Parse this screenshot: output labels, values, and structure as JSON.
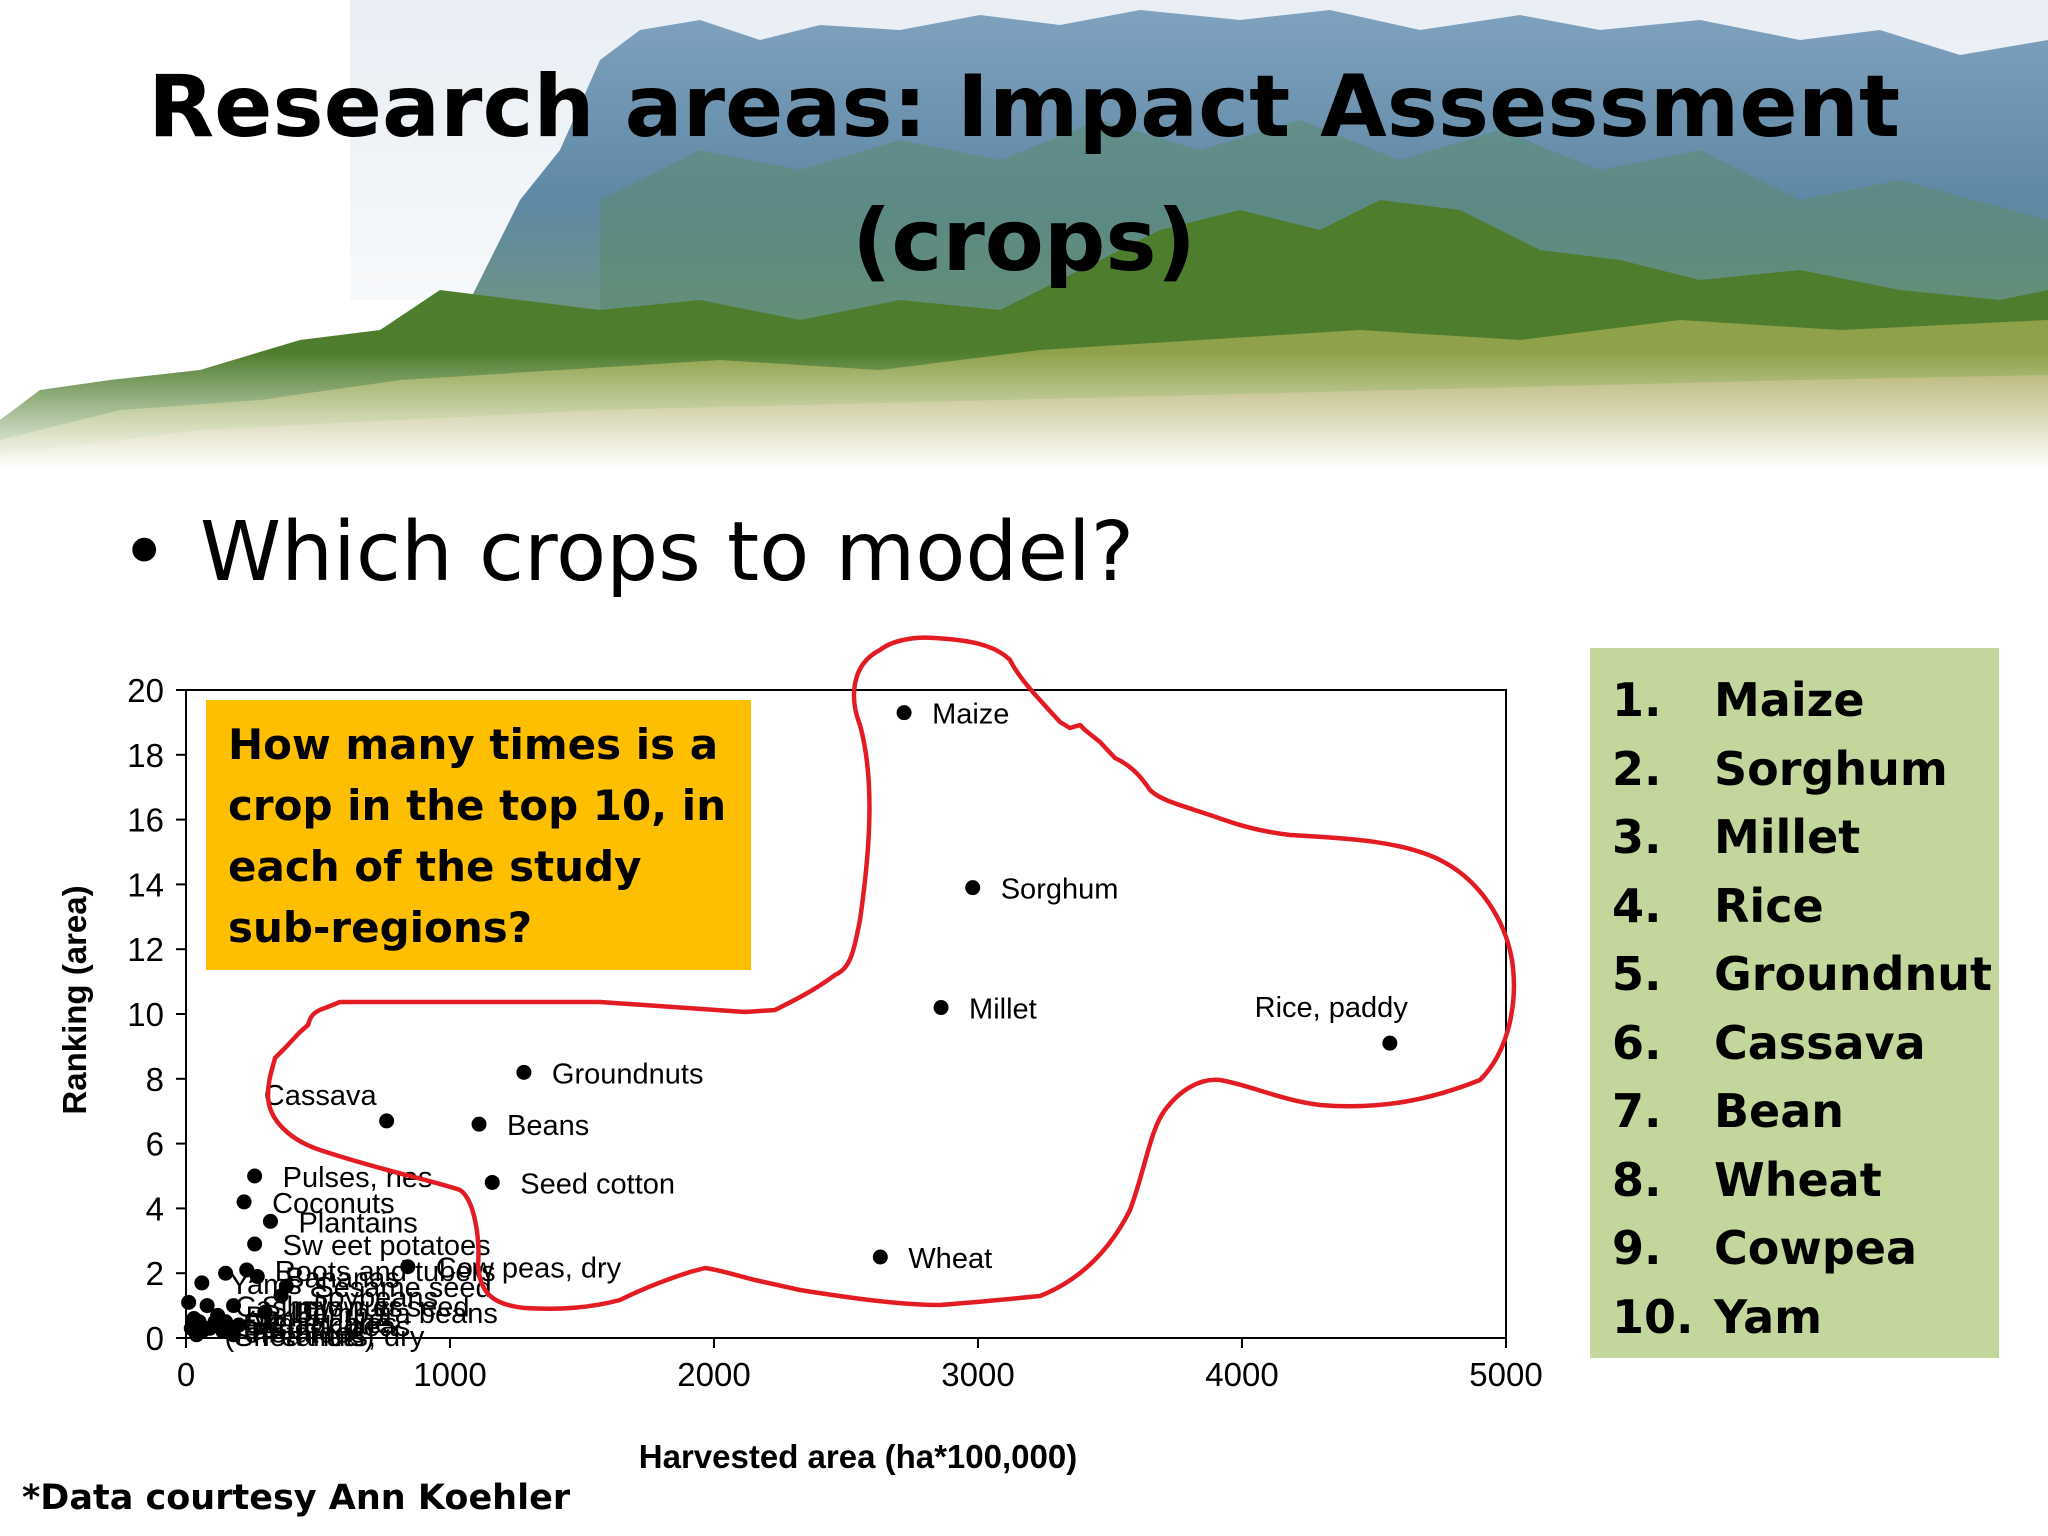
{
  "slide": {
    "title_line1": "Research areas: Impact Assessment",
    "title_line2": "(crops)",
    "bullet": "Which crops to model?",
    "callout": "How many times is a crop in the top 10, in each of the study sub-regions?",
    "credit": "*Data courtesy Ann Koehler",
    "ranking": [
      {
        "num": "1.",
        "name": "Maize"
      },
      {
        "num": "2.",
        "name": "Sorghum"
      },
      {
        "num": "3.",
        "name": "Millet"
      },
      {
        "num": "4.",
        "name": "Rice"
      },
      {
        "num": "5.",
        "name": "Groundnut"
      },
      {
        "num": "6.",
        "name": "Cassava"
      },
      {
        "num": "7.",
        "name": "Bean"
      },
      {
        "num": "8.",
        "name": "Wheat"
      },
      {
        "num": "9.",
        "name": "Cowpea"
      },
      {
        "num": "10.",
        "name": "Yam"
      }
    ],
    "colors": {
      "callout_bg": "#fdbf00",
      "ranking_bg": "#c3d69b",
      "highlight_outline": "#e31b23",
      "point": "#000000"
    }
  },
  "chart_data": {
    "type": "scatter",
    "xlabel": "Harvested area (ha*100,000)",
    "ylabel": "Ranking (area)",
    "xlim": [
      0,
      5000
    ],
    "ylim": [
      0,
      20
    ],
    "xticks": [
      0,
      1000,
      2000,
      3000,
      4000,
      5000
    ],
    "yticks": [
      0,
      2,
      4,
      6,
      8,
      10,
      12,
      14,
      16,
      18,
      20
    ],
    "grid": false,
    "points": [
      {
        "label": "Maize",
        "x": 2720,
        "y": 19.3
      },
      {
        "label": "Sorghum",
        "x": 2980,
        "y": 13.9
      },
      {
        "label": "Millet",
        "x": 2860,
        "y": 10.2
      },
      {
        "label": "Rice, paddy",
        "x": 4560,
        "y": 9.1
      },
      {
        "label": "Groundnuts",
        "x": 1280,
        "y": 8.2
      },
      {
        "label": "Cassava",
        "x": 760,
        "y": 6.7
      },
      {
        "label": "Beans",
        "x": 1110,
        "y": 6.6
      },
      {
        "label": "Seed cotton",
        "x": 1160,
        "y": 4.8
      },
      {
        "label": "Wheat",
        "x": 2630,
        "y": 2.5
      },
      {
        "label": "Pulses, nes",
        "x": 260,
        "y": 5.0
      },
      {
        "label": "Coconuts",
        "x": 220,
        "y": 4.2
      },
      {
        "label": "Plantains",
        "x": 320,
        "y": 3.6
      },
      {
        "label": "Sw eet potatoes",
        "x": 260,
        "y": 2.9
      },
      {
        "label": "Roots and tubers",
        "x": 230,
        "y": 2.1
      },
      {
        "label": "Cow peas, dry",
        "x": 840,
        "y": 2.2
      },
      {
        "label": "Bananas",
        "x": 270,
        "y": 1.9
      },
      {
        "label": "Sesame seed",
        "x": 380,
        "y": 1.6
      },
      {
        "label": "Soybeans",
        "x": 360,
        "y": 1.3
      },
      {
        "label": "Yams",
        "x": 60,
        "y": 1.7
      },
      {
        "label": "",
        "x": 150,
        "y": 2.0
      },
      {
        "label": "Sunflow er seed",
        "x": 180,
        "y": 1.0
      },
      {
        "label": "Cashew nuts",
        "x": 80,
        "y": 1.0
      },
      {
        "label": "Bambara beans",
        "x": 300,
        "y": 0.8
      },
      {
        "label": "Barley",
        "x": 120,
        "y": 0.7
      },
      {
        "label": "Vegetables",
        "x": 150,
        "y": 0.5
      },
      {
        "label": "Chick peas",
        "x": 200,
        "y": 0.4
      },
      {
        "label": "Taro",
        "x": 90,
        "y": 0.3
      },
      {
        "label": "Potatoes",
        "x": 140,
        "y": 0.2
      },
      {
        "label": "Teff",
        "x": 60,
        "y": 0.2
      },
      {
        "label": "Sugar cane",
        "x": 110,
        "y": 0.5
      },
      {
        "label": "(Shea nuts)",
        "x": 40,
        "y": 0.1
      },
      {
        "label": "Peanuts, dry",
        "x": 180,
        "y": 0.1
      },
      {
        "label": "",
        "x": 30,
        "y": 0.6
      },
      {
        "label": "",
        "x": 20,
        "y": 0.3
      },
      {
        "label": "",
        "x": 50,
        "y": 0.5
      },
      {
        "label": "",
        "x": 10,
        "y": 1.1
      }
    ]
  }
}
